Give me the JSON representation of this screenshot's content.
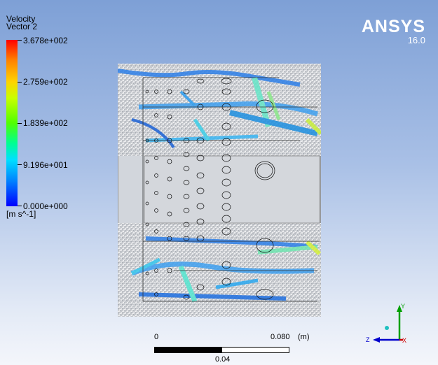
{
  "legend": {
    "title_line1": "Velocity",
    "title_line2": "Vector 2",
    "ticks": [
      "3.678e+002",
      "2.759e+002",
      "1.839e+002",
      "9.196e+001",
      "0.000e+000"
    ],
    "units": "[m s^-1]"
  },
  "logo": {
    "name": "ANSYS",
    "version": "16.0"
  },
  "scale": {
    "min_label": "0",
    "mid_label": "0.04",
    "max_label": "0.080",
    "unit": "(m)"
  },
  "triad": {
    "x_label": "X",
    "y_label": "Y",
    "z_label": "Z"
  },
  "colors": {
    "x_axis": "#cc0000",
    "y_axis": "#00a000",
    "z_axis": "#0000cc",
    "origin": "#20c0c0"
  }
}
